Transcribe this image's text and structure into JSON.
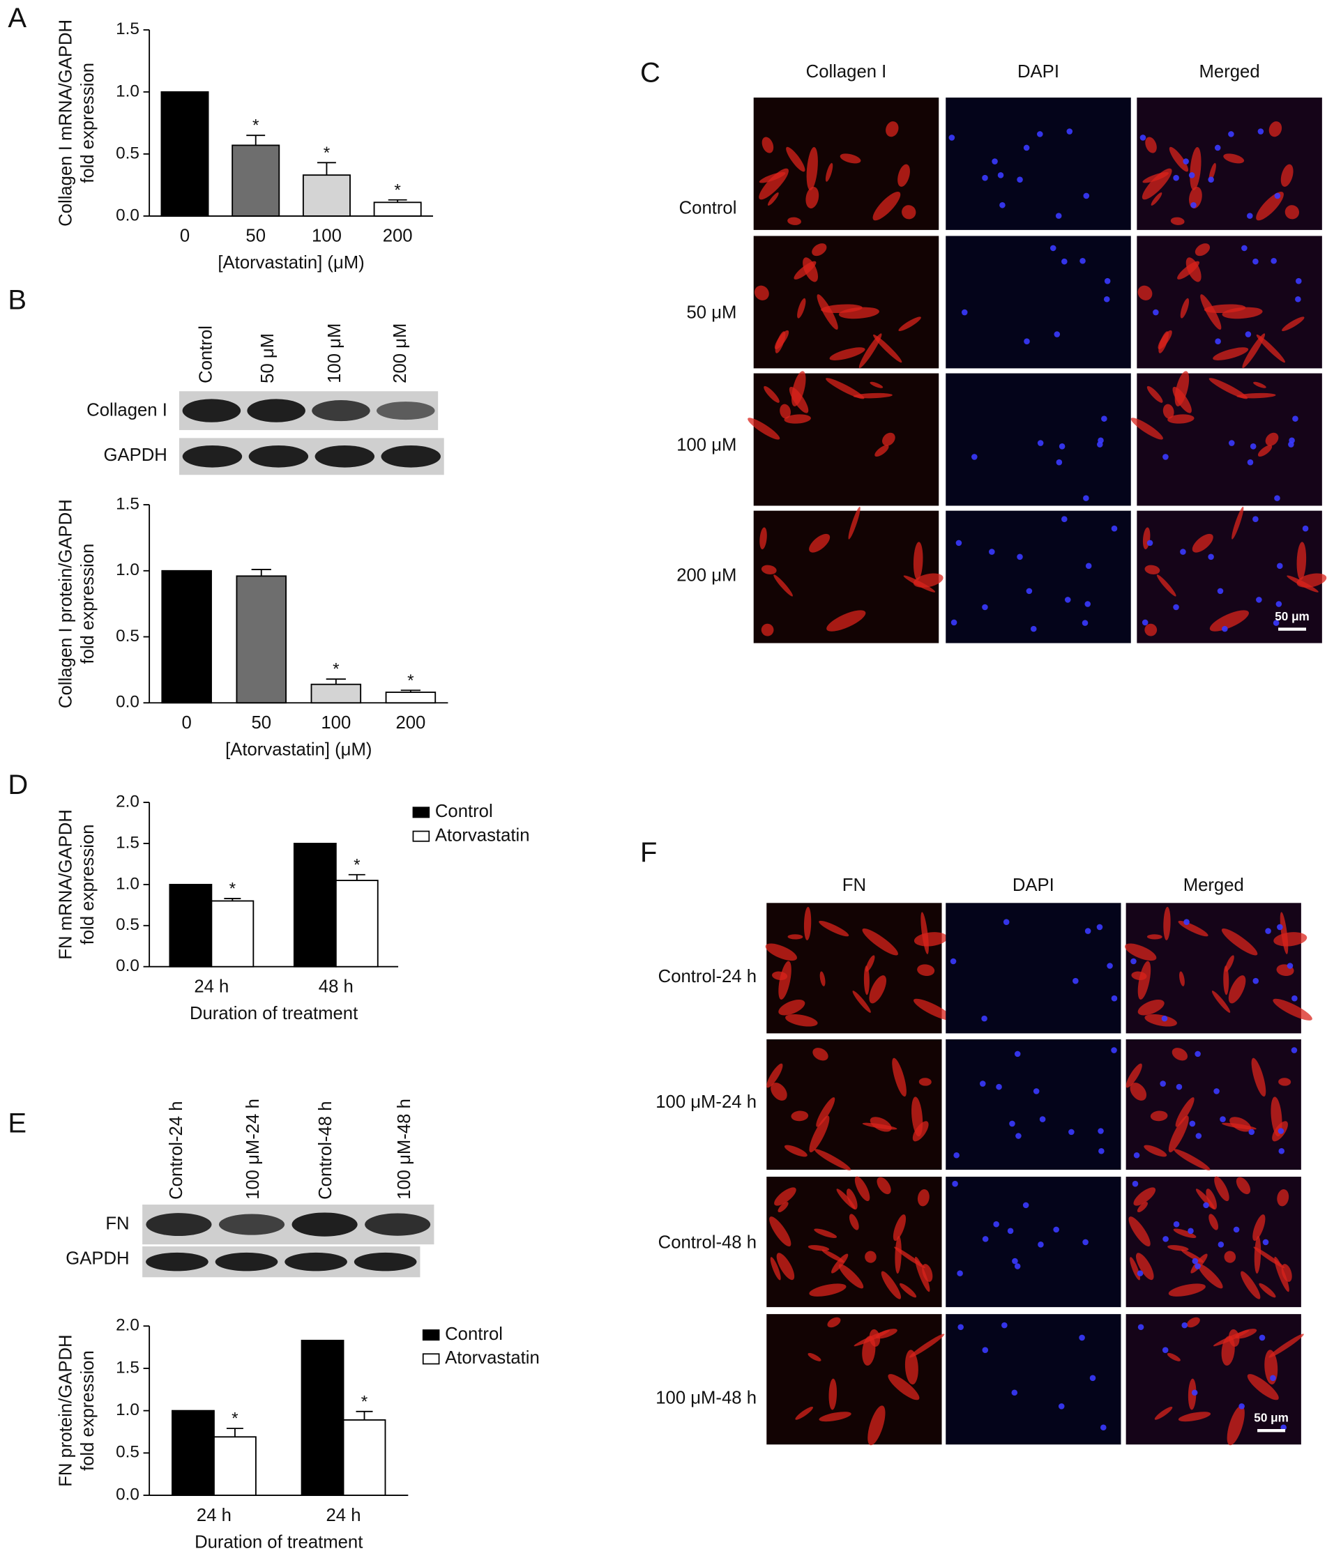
{
  "panel_labels": [
    "A",
    "B",
    "C",
    "D",
    "E",
    "F"
  ],
  "chart_data": [
    {
      "type": "bar",
      "categories": [
        "0",
        "50",
        "100",
        "200"
      ],
      "values": [
        1.0,
        0.57,
        0.33,
        0.11
      ],
      "errors": [
        null,
        0.08,
        0.1,
        0.02
      ],
      "colors": [
        "#000000",
        "#6e6e6e",
        "#d4d4d4",
        "#ffffff"
      ],
      "significance": [
        null,
        "*",
        "*",
        "*"
      ],
      "xlabel": "[Atorvastatin] (μM)",
      "ylabel": [
        "Collagen I mRNA/GAPDH",
        "fold expression"
      ],
      "ylim": [
        0,
        1.5
      ],
      "yticks": [
        {
          "value": 0,
          "label": "0.0"
        },
        0.5,
        {
          "value": 1,
          "label": "1.0"
        },
        1.5
      ]
    },
    {
      "type": "bar",
      "categories": [
        "0",
        "50",
        "100",
        "200"
      ],
      "values": [
        1.0,
        0.96,
        0.14,
        0.08
      ],
      "errors": [
        null,
        0.05,
        0.04,
        0.015
      ],
      "colors": [
        "#000000",
        "#6e6e6e",
        "#d4d4d4",
        "#ffffff"
      ],
      "significance": [
        null,
        null,
        "*",
        "*"
      ],
      "xlabel": "[Atorvastatin] (μM)",
      "ylabel": [
        "Collagen I protein/GAPDH",
        "fold expression"
      ],
      "ylim": [
        0,
        1.5
      ],
      "yticks": [
        {
          "value": 0,
          "label": "0.0"
        },
        0.5,
        {
          "value": 1,
          "label": "1.0"
        },
        1.5
      ]
    },
    {
      "type": "bar",
      "categories": [
        "24 h",
        "48 h"
      ],
      "series": [
        {
          "name": "Control",
          "color": "#000000",
          "values": [
            1.0,
            1.5
          ],
          "errors": [
            null,
            null
          ],
          "significance": [
            null,
            null
          ]
        },
        {
          "name": "Atorvastatin",
          "color": "#ffffff",
          "values": [
            0.8,
            1.05
          ],
          "errors": [
            0.03,
            0.07
          ],
          "significance": [
            "*",
            "*"
          ]
        }
      ],
      "xlabel": "Duration of treatment",
      "ylabel": [
        "FN mRNA/GAPDH",
        "fold expression"
      ],
      "ylim": [
        0,
        2
      ],
      "yticks": [
        {
          "value": 0,
          "label": "0.0"
        },
        0.5,
        {
          "value": 1,
          "label": "1.0"
        },
        1.5,
        {
          "value": 2,
          "label": "2.0"
        }
      ]
    },
    {
      "type": "bar",
      "categories": [
        "24 h",
        "24 h"
      ],
      "series": [
        {
          "name": "Control",
          "color": "#000000",
          "values": [
            1.0,
            1.83
          ],
          "errors": [
            null,
            null
          ],
          "significance": [
            null,
            null
          ]
        },
        {
          "name": "Atorvastatin",
          "color": "#ffffff",
          "values": [
            0.69,
            0.89
          ],
          "errors": [
            0.1,
            0.1
          ],
          "significance": [
            "*",
            "*"
          ]
        }
      ],
      "xlabel": "Duration of treatment",
      "ylabel": [
        "FN protein/GAPDH",
        "fold expression"
      ],
      "ylim": [
        0,
        2
      ],
      "yticks": [
        {
          "value": 0,
          "label": "0.0"
        },
        0.5,
        {
          "value": 1,
          "label": "1.0"
        },
        1.5,
        {
          "value": 2,
          "label": "2.0"
        }
      ]
    }
  ],
  "blots": [
    {
      "lanes": [
        "Control",
        "50 μM",
        "100 μM",
        "200 μM"
      ],
      "rows": [
        "Collagen I",
        "GAPDH"
      ]
    },
    {
      "lanes": [
        "Control-24 h",
        "100 μM-24 h",
        "Control-48 h",
        "100 μM-48 h"
      ],
      "rows": [
        "FN",
        "GAPDH"
      ]
    }
  ],
  "micrographs": [
    {
      "columns": [
        "Collagen I",
        "DAPI",
        "Merged"
      ],
      "rows": [
        "Control",
        "50 μM",
        "100 μM",
        "200 μM"
      ],
      "scale_bar": "50 μm"
    },
    {
      "columns": [
        "FN",
        "DAPI",
        "Merged"
      ],
      "rows": [
        "Control-24 h",
        "100 μM-24 h",
        "Control-48 h",
        "100 μM-48 h"
      ],
      "scale_bar": "50 μm"
    }
  ]
}
